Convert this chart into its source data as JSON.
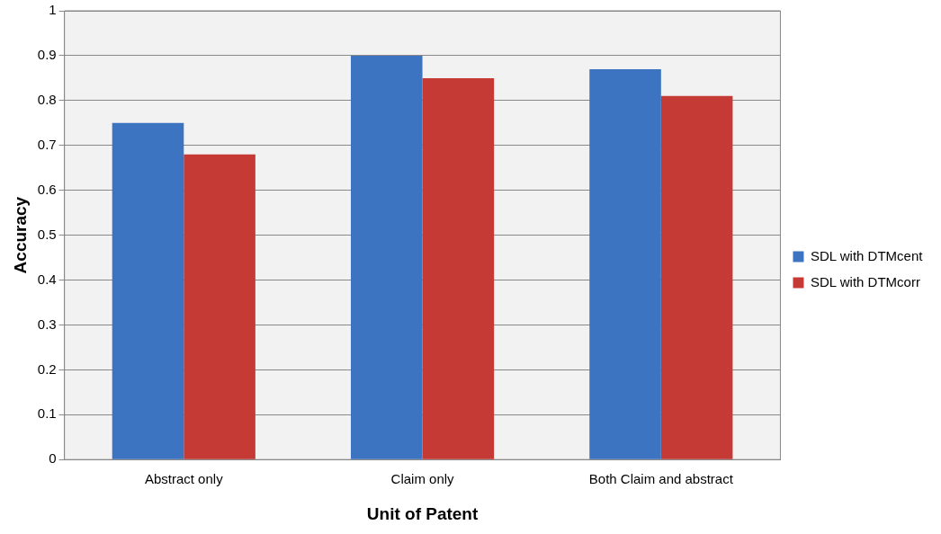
{
  "chart_data": {
    "type": "bar",
    "xlabel": "Unit of Patent",
    "ylabel": "Accuracy",
    "categories": [
      "Abstract only",
      "Claim only",
      "Both Claim and abstract"
    ],
    "series": [
      {
        "name": "SDL with DTMcent",
        "color": "#3c74c2",
        "values": [
          0.75,
          0.9,
          0.87
        ]
      },
      {
        "name": "SDL with DTMcorr",
        "color": "#c63a36",
        "values": [
          0.68,
          0.85,
          0.81
        ]
      }
    ],
    "ylim": [
      0,
      1
    ],
    "yticks": [
      0,
      0.1,
      0.2,
      0.3,
      0.4,
      0.5,
      0.6,
      0.7,
      0.8,
      0.9,
      1
    ],
    "grid": "y",
    "legend": "right"
  }
}
